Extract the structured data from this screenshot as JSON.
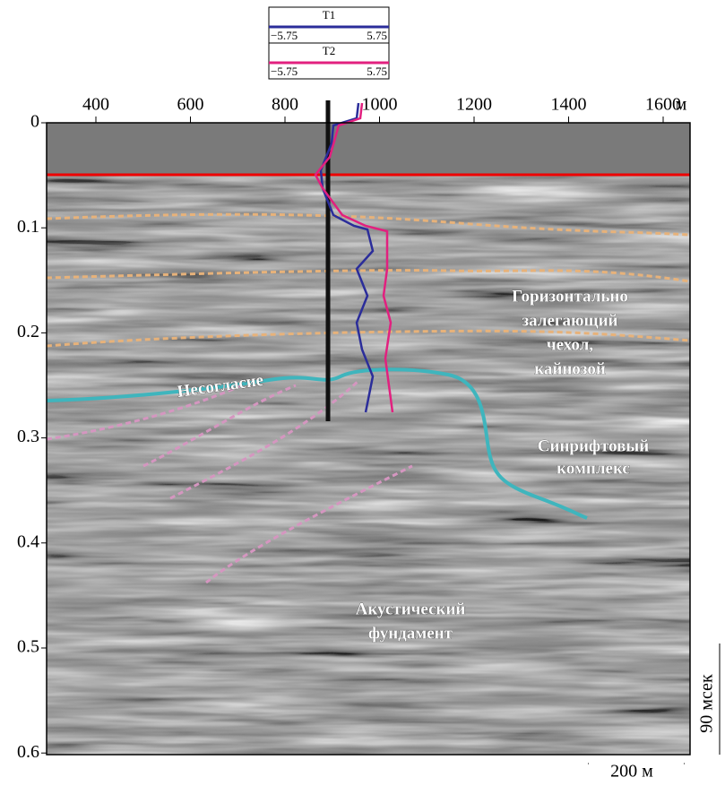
{
  "figure": {
    "x_axis": {
      "ticks": [
        "400",
        "600",
        "800",
        "1000",
        "1200",
        "1400",
        "1600"
      ],
      "unit": "м"
    },
    "y_axis": {
      "ticks": [
        "0",
        "0.1",
        "0.2",
        "0.3",
        "0.4",
        "0.5",
        "0.6"
      ]
    },
    "legend": [
      {
        "name": "T1",
        "min": "−5.75",
        "max": "5.75"
      },
      {
        "name": "T2",
        "min": "−5.75",
        "max": "5.75"
      }
    ],
    "annotations": {
      "cover": [
        "Горизонтально",
        "залегающий",
        "чехол,",
        "кайнозой"
      ],
      "unconformity": [
        "Несогласие"
      ],
      "synrift": [
        "Синрифтовый",
        "комплекс"
      ],
      "basement": [
        "Акустический",
        "фундамент"
      ]
    },
    "scale_bar": {
      "vertical": "90 мсек",
      "horizontal": "200 м"
    }
  }
}
